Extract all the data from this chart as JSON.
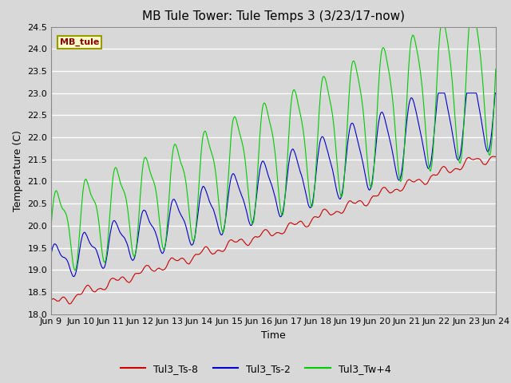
{
  "title": "MB Tule Tower: Tule Temps 3 (3/23/17-now)",
  "xlabel": "Time",
  "ylabel": "Temperature (C)",
  "ylim": [
    18.0,
    24.5
  ],
  "xlim": [
    0,
    15
  ],
  "bg_color": "#d8d8d8",
  "series_labels": [
    "Tul3_Ts-8",
    "Tul3_Ts-2",
    "Tul3_Tw+4"
  ],
  "series_colors": [
    "#cc0000",
    "#0000cc",
    "#00cc00"
  ],
  "xtick_labels": [
    "Jun 9",
    "Jun 10",
    "Jun 11",
    "Jun 12",
    "Jun 13",
    "Jun 14",
    "Jun 15",
    "Jun 16",
    "Jun 17",
    "Jun 18",
    "Jun 19",
    "Jun 20",
    "Jun 21",
    "Jun 22",
    "Jun 23",
    "Jun 24"
  ],
  "ytick_values": [
    18.0,
    18.5,
    19.0,
    19.5,
    20.0,
    20.5,
    21.0,
    21.5,
    22.0,
    22.5,
    23.0,
    23.5,
    24.0,
    24.5
  ],
  "grid_color": "#ffffff",
  "mb_label": "MB_tule",
  "mb_label_color": "#8b0000",
  "mb_box_facecolor": "#ffffcc",
  "mb_box_edgecolor": "#999900",
  "title_fontsize": 11,
  "axis_label_fontsize": 9,
  "tick_fontsize": 8,
  "legend_fontsize": 9
}
